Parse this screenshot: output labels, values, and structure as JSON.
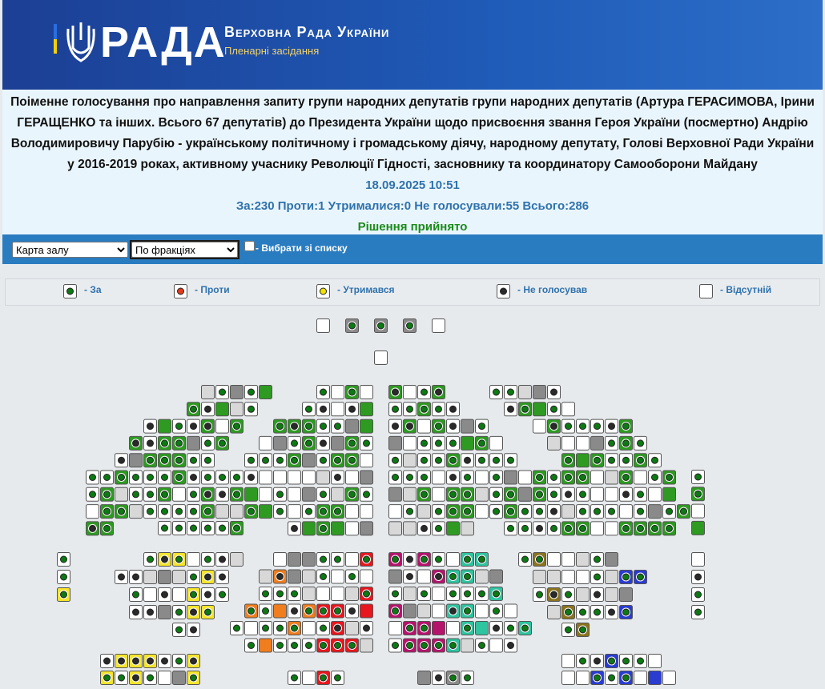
{
  "header": {
    "logo": "РАДА",
    "title": "Верховна Рада України",
    "subtitle": "Пленарні засідання"
  },
  "vote": {
    "title": "Поіменне голосування про направлення запиту групи народних депутатів групи народних депутатів (Артура ГЕРАСИМОВА, Ірини ГЕРАЩЕНКО та інших. Всього 67 депутатів) до Президента України щодо присвоєння звання Героя України (посмертно) Андрію Володимировичу Парубію - українському політичному і громадському діячу, народному депутату, Голові Верховної Ради України у 2016-2019 роках, активному учаснику Революції Гідності, засновнику та координатору Самооборони Майдану",
    "datetime": "18.09.2025 10:51",
    "results": "За:230 Проти:1 Утрималися:0 Не голосували:55 Всього:286",
    "decision": "Рішення прийнято"
  },
  "toolbar": {
    "view": "Карта залу",
    "grouping": "По фракціях",
    "checkbox": "- Вибрати зі списку"
  },
  "legend": [
    {
      "label": "- За",
      "state": "for"
    },
    {
      "label": "- Проти",
      "state": "against"
    },
    {
      "label": "- Утримався",
      "state": "abstain"
    },
    {
      "label": "- Не голосував",
      "state": "novote"
    },
    {
      "label": "- Відсутній",
      "state": "absent"
    }
  ]
}
